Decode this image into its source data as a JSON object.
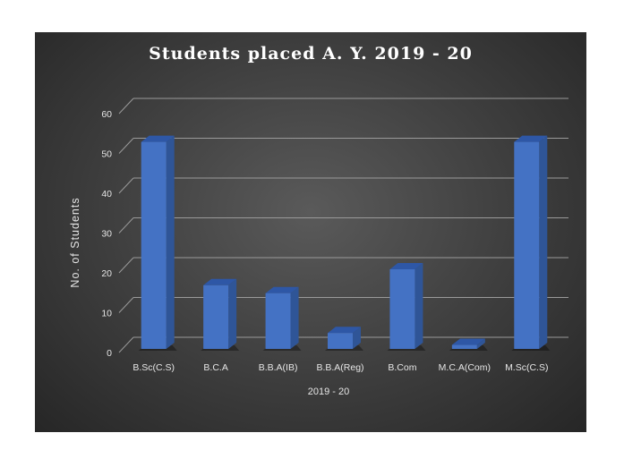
{
  "chart_data": {
    "type": "bar",
    "title": "Students  placed  A. Y. 2019 - 20",
    "xlabel": "2019 - 20",
    "ylabel": "No. of Students",
    "categories": [
      "B.Sc(C.S)",
      "B.C.A",
      "B.B.A(IB)",
      "B.B.A(Reg)",
      "B.Com",
      "M.C.A(Com)",
      "M.Sc(C.S)"
    ],
    "values": [
      52,
      16,
      14,
      4,
      20,
      1,
      52
    ],
    "ylim": [
      0,
      60
    ],
    "yticks": [
      0,
      10,
      20,
      30,
      40,
      50,
      60
    ],
    "grid": true,
    "legend": "none",
    "colors": {
      "bar_front": "#4472c4",
      "bar_side": "#2f5597",
      "bar_top": "#2e57a6",
      "background": "#3f3f3f",
      "gridline": "#9a9a9a",
      "text": "#e6e6e6"
    }
  }
}
